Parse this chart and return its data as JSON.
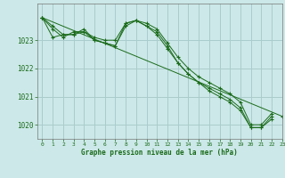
{
  "title": "Graphe pression niveau de la mer (hPa)",
  "bg_color": "#cce8e8",
  "grid_color": "#aacccc",
  "line_color": "#1a6b1a",
  "xlim": [
    -0.5,
    23
  ],
  "ylim": [
    1019.5,
    1024.3
  ],
  "yticks": [
    1020,
    1021,
    1022,
    1023
  ],
  "xticks": [
    0,
    1,
    2,
    3,
    4,
    5,
    6,
    7,
    8,
    9,
    10,
    11,
    12,
    13,
    14,
    15,
    16,
    17,
    18,
    19,
    20,
    21,
    22,
    23
  ],
  "series": [
    [
      1023.8,
      1023.5,
      1023.2,
      1023.2,
      1023.3,
      1023.1,
      1023.0,
      1023.0,
      1023.6,
      1023.7,
      1023.6,
      1023.4,
      1022.9,
      1022.4,
      1022.0,
      1021.7,
      1021.5,
      1021.3,
      1021.1,
      1020.8,
      1020.0,
      1020.0,
      1020.4,
      null
    ],
    [
      1023.8,
      1023.4,
      1023.1,
      1023.3,
      1023.3,
      1023.0,
      1022.9,
      1022.8,
      1023.6,
      1023.7,
      1023.5,
      1023.3,
      1022.8,
      1022.2,
      1021.8,
      1021.5,
      1021.3,
      1021.1,
      1020.9,
      1020.6,
      1019.9,
      1019.9,
      1020.3,
      null
    ],
    [
      1023.8,
      1023.1,
      1023.2,
      1023.2,
      1023.4,
      1023.0,
      1022.9,
      1022.8,
      1023.5,
      1023.7,
      1023.5,
      1023.2,
      1022.7,
      1022.2,
      1021.8,
      1021.5,
      1021.2,
      1021.0,
      1020.8,
      1020.5,
      1019.9,
      1019.9,
      1020.2,
      null
    ],
    [
      1023.8,
      null,
      null,
      null,
      null,
      null,
      null,
      null,
      null,
      null,
      null,
      null,
      null,
      null,
      null,
      null,
      null,
      null,
      null,
      null,
      null,
      null,
      null,
      1020.3
    ]
  ]
}
